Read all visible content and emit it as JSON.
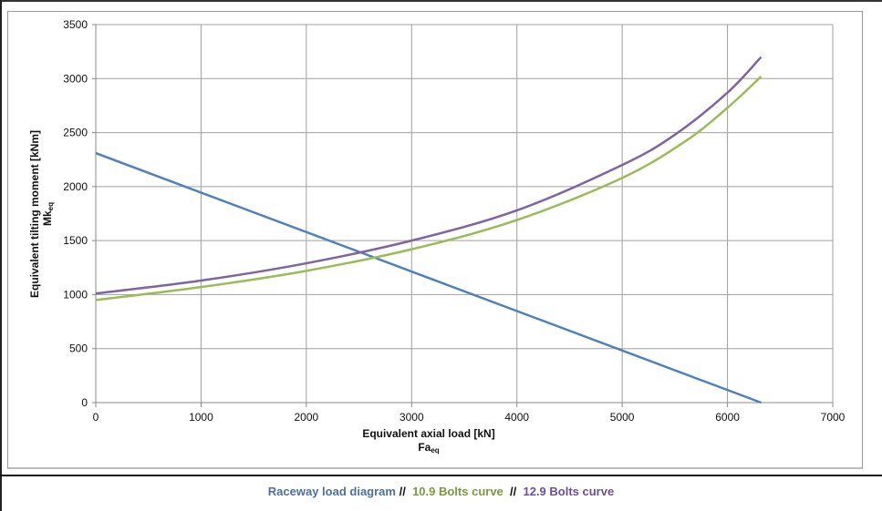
{
  "chart_data": {
    "type": "line",
    "xlabel": "Equivalent axial load [kN]",
    "xlabel_sub": {
      "main": "Fa",
      "sub": "eq"
    },
    "ylabel": "Equivalent tilting moment [kNm]",
    "ylabel_sub": {
      "main": "Mk",
      "sub": "eq"
    },
    "xlim": [
      0,
      7000
    ],
    "ylim": [
      0,
      3500
    ],
    "xticks": [
      0,
      1000,
      2000,
      3000,
      4000,
      5000,
      6000,
      7000
    ],
    "yticks": [
      0,
      500,
      1000,
      1500,
      2000,
      2500,
      3000,
      3500
    ],
    "grid": true,
    "series": [
      {
        "name": "Raceway load diagram",
        "color": "#4f81bd",
        "x": [
          0,
          6320
        ],
        "y": [
          2310,
          0
        ]
      },
      {
        "name": "10.9 Bolts curve",
        "color": "#9bbb59",
        "x": [
          0,
          1000,
          2000,
          3000,
          4000,
          5000,
          5600,
          6000,
          6320
        ],
        "y": [
          950,
          1070,
          1220,
          1420,
          1690,
          2080,
          2420,
          2730,
          3020
        ]
      },
      {
        "name": "12.9 Bolts curve",
        "color": "#8064a2",
        "x": [
          0,
          1000,
          2000,
          3000,
          4000,
          5000,
          5500,
          6000,
          6320
        ],
        "y": [
          1010,
          1130,
          1290,
          1500,
          1780,
          2200,
          2480,
          2870,
          3200
        ]
      }
    ]
  },
  "legend": {
    "items": [
      {
        "label": "Raceway load diagram",
        "color": "#4f6fa0"
      },
      {
        "label": "10.9 Bolts curve",
        "color": "#7a9a3e"
      },
      {
        "label": "12.9 Bolts curve",
        "color": "#6a5090"
      }
    ],
    "separator": "//"
  }
}
